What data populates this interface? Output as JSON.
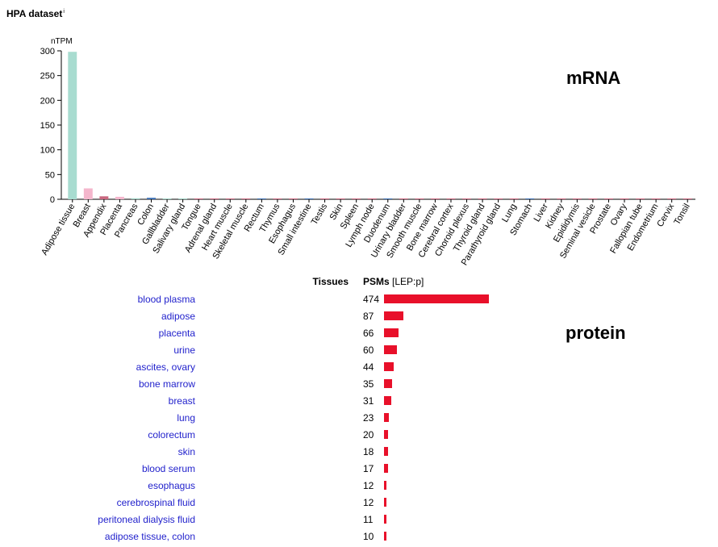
{
  "header": {
    "title": "HPA dataset",
    "info_mark": "i"
  },
  "chart_data": {
    "type": "bar",
    "ylabel": "nTPM",
    "ylim": [
      0,
      300
    ],
    "yticks": [
      0,
      50,
      100,
      150,
      200,
      250,
      300
    ],
    "categories": [
      "Adipose tissue",
      "Breast",
      "Appendix",
      "Placenta",
      "Pancreas",
      "Colon",
      "Gallbladder",
      "Salivary gland",
      "Tongue",
      "Adrenal gland",
      "Heart muscle",
      "Skeletal muscle",
      "Rectum",
      "Thymus",
      "Esophagus",
      "Small intestine",
      "Testis",
      "Skin",
      "Spleen",
      "Lymph node",
      "Duodenum",
      "Urinary bladder",
      "Smooth muscle",
      "Bone marrow",
      "Cerebral cortex",
      "Choroid plexus",
      "Thyroid gland",
      "Parathyroid gland",
      "Lung",
      "Stomach",
      "Liver",
      "Kidney",
      "Epididymis",
      "Seminal vesicle",
      "Prostate",
      "Ovary",
      "Fallopian tube",
      "Endometrium",
      "Cervix",
      "Tonsil"
    ],
    "values": [
      298,
      22,
      6,
      5,
      2,
      3,
      1,
      0.5,
      0.5,
      1.5,
      0.5,
      0.5,
      0.5,
      0.5,
      0.5,
      0.5,
      0.5,
      0.5,
      0.5,
      0.5,
      0.5,
      0.5,
      0.5,
      0.5,
      0.5,
      0.5,
      0.5,
      0.5,
      0.5,
      0.5,
      0.5,
      0.5,
      0.5,
      0.5,
      0.5,
      0.5,
      0.5,
      0.5,
      0.5,
      0.5
    ],
    "colors": [
      "#a8dcd0",
      "#f4b6cc",
      "#c9677f",
      "#f4b6cc",
      "#9fd3c4",
      "#3b6fb4",
      "#9fd3c4",
      "#9fd3c4",
      "#c9677f",
      "#c9677f",
      "#c9677f",
      "#c9677f",
      "#3b6fb4",
      "#c9677f",
      "#c9677f",
      "#3b6fb4",
      "#c9677f",
      "#c9677f",
      "#c9677f",
      "#c9677f",
      "#3b6fb4",
      "#c9677f",
      "#c9677f",
      "#c9677f",
      "#c9677f",
      "#c9677f",
      "#c9677f",
      "#c9677f",
      "#c9677f",
      "#3b6fb4",
      "#c9677f",
      "#c9677f",
      "#c9677f",
      "#c9677f",
      "#c9677f",
      "#c9677f",
      "#c9677f",
      "#c9677f",
      "#c9677f",
      "#c9677f"
    ]
  },
  "labels": {
    "mrna": "mRNA",
    "protein": "protein"
  },
  "protein": {
    "col_tissues": "Tissues",
    "col_psms": "PSMs",
    "col_unit": "[LEP:p]",
    "bar_color": "#e8102a",
    "max_value": 474,
    "rows": [
      {
        "tissue": "blood plasma",
        "psms": 474
      },
      {
        "tissue": "adipose",
        "psms": 87
      },
      {
        "tissue": "placenta",
        "psms": 66
      },
      {
        "tissue": "urine",
        "psms": 60
      },
      {
        "tissue": "ascites, ovary",
        "psms": 44
      },
      {
        "tissue": "bone marrow",
        "psms": 35
      },
      {
        "tissue": "breast",
        "psms": 31
      },
      {
        "tissue": "lung",
        "psms": 23
      },
      {
        "tissue": "colorectum",
        "psms": 20
      },
      {
        "tissue": "skin",
        "psms": 18
      },
      {
        "tissue": "blood serum",
        "psms": 17
      },
      {
        "tissue": "esophagus",
        "psms": 12
      },
      {
        "tissue": "cerebrospinal fluid",
        "psms": 12
      },
      {
        "tissue": "peritoneal dialysis fluid",
        "psms": 11
      },
      {
        "tissue": "adipose tissue, colon",
        "psms": 10
      }
    ]
  }
}
